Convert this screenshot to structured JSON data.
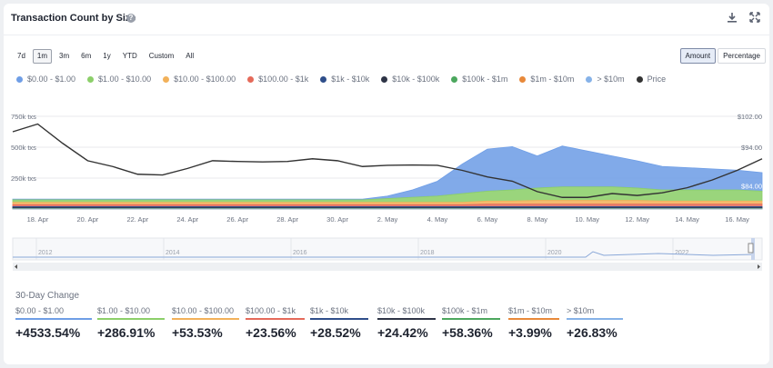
{
  "header": {
    "title": "Transaction Count by Size",
    "help_icon": "?"
  },
  "ranges": [
    {
      "label": "7d",
      "active": false
    },
    {
      "label": "1m",
      "active": true
    },
    {
      "label": "3m",
      "active": false
    },
    {
      "label": "6m",
      "active": false
    },
    {
      "label": "1y",
      "active": false
    },
    {
      "label": "YTD",
      "active": false
    },
    {
      "label": "Custom",
      "active": false
    },
    {
      "label": "All",
      "active": false
    }
  ],
  "modes": [
    {
      "label": "Amount",
      "active": true
    },
    {
      "label": "Percentage",
      "active": false
    }
  ],
  "colors": {
    "s1": "#6f9ee6",
    "s2": "#8ccf6a",
    "s3": "#f2b15a",
    "s4": "#e56a5a",
    "s5": "#2f4e8a",
    "s6": "#2e3446",
    "s7": "#4ca75e",
    "s8": "#e8893a",
    "s9": "#86b2e8",
    "price": "#333333"
  },
  "legend": [
    {
      "label": "$0.00 - $1.00",
      "color": "#6f9ee6"
    },
    {
      "label": "$1.00 - $10.00",
      "color": "#8ccf6a"
    },
    {
      "label": "$10.00 - $100.00",
      "color": "#f2b15a"
    },
    {
      "label": "$100.00 - $1k",
      "color": "#e56a5a"
    },
    {
      "label": "$1k - $10k",
      "color": "#2f4e8a"
    },
    {
      "label": "$10k - $100k",
      "color": "#2e3446"
    },
    {
      "label": "$100k - $1m",
      "color": "#4ca75e"
    },
    {
      "label": "$1m - $10m",
      "color": "#e8893a"
    },
    {
      "label": "> $10m",
      "color": "#86b2e8"
    },
    {
      "label": "Price",
      "color": "#333333"
    }
  ],
  "chart_data": {
    "type": "area",
    "y_left_ticks": [
      "750k txs",
      "500k txs",
      "250k txs"
    ],
    "y_right_ticks": [
      "$102.00",
      "$94.00"
    ],
    "right_value_labels": [
      "$84.00"
    ],
    "ylim_left": [
      0,
      750000
    ],
    "ylim_right": [
      78,
      102
    ],
    "x_ticks": [
      "18. Apr",
      "20. Apr",
      "22. Apr",
      "24. Apr",
      "26. Apr",
      "28. Apr",
      "30. Apr",
      "2. May",
      "4. May",
      "6. May",
      "8. May",
      "10. May",
      "12. May",
      "14. May",
      "16. May"
    ],
    "x": [
      "17. Apr",
      "18. Apr",
      "19. Apr",
      "20. Apr",
      "21. Apr",
      "22. Apr",
      "23. Apr",
      "24. Apr",
      "25. Apr",
      "26. Apr",
      "27. Apr",
      "28. Apr",
      "29. Apr",
      "30. Apr",
      "1. May",
      "2. May",
      "3. May",
      "4. May",
      "5. May",
      "6. May",
      "7. May",
      "8. May",
      "9. May",
      "10. May",
      "11. May",
      "12. May",
      "13. May",
      "14. May",
      "15. May",
      "16. May",
      "17. May"
    ],
    "series": [
      {
        "name": "$0.00 - $1.00",
        "values": [
          5000,
          5000,
          5000,
          5000,
          5000,
          5000,
          5000,
          5000,
          5000,
          5000,
          5000,
          5000,
          5000,
          5000,
          5000,
          20000,
          60000,
          120000,
          240000,
          340000,
          350000,
          260000,
          330000,
          290000,
          250000,
          220000,
          190000,
          180000,
          170000,
          160000,
          150000
        ]
      },
      {
        "name": "$1.00 - $10.00",
        "values": [
          20000,
          20000,
          20000,
          20000,
          20000,
          20000,
          20000,
          20000,
          20000,
          20000,
          20000,
          20000,
          20000,
          20000,
          20000,
          30000,
          40000,
          50000,
          70000,
          80000,
          90000,
          100000,
          110000,
          110000,
          110000,
          100000,
          90000,
          90000,
          90000,
          90000,
          80000
        ]
      },
      {
        "name": "$10.00 - $100.00",
        "values": [
          20000,
          20000,
          20000,
          20000,
          20000,
          20000,
          20000,
          20000,
          20000,
          20000,
          20000,
          20000,
          20000,
          20000,
          20000,
          20000,
          20000,
          20000,
          20000,
          25000,
          25000,
          30000,
          30000,
          30000,
          30000,
          30000,
          25000,
          25000,
          25000,
          25000,
          25000
        ]
      },
      {
        "name": "$100.00 - $1k",
        "values": [
          15000,
          15000,
          15000,
          15000,
          15000,
          15000,
          15000,
          15000,
          15000,
          15000,
          15000,
          15000,
          15000,
          15000,
          15000,
          15000,
          15000,
          15000,
          15000,
          20000,
          20000,
          20000,
          20000,
          20000,
          20000,
          20000,
          20000,
          20000,
          20000,
          20000,
          20000
        ]
      },
      {
        "name": "$1k - $10k",
        "values": [
          10000,
          10000,
          10000,
          10000,
          10000,
          10000,
          10000,
          10000,
          10000,
          10000,
          10000,
          10000,
          10000,
          10000,
          10000,
          10000,
          10000,
          10000,
          10000,
          10000,
          10000,
          10000,
          10000,
          10000,
          10000,
          10000,
          10000,
          10000,
          10000,
          10000,
          10000
        ]
      },
      {
        "name": "$10k - $100k",
        "values": [
          5000,
          5000,
          5000,
          5000,
          5000,
          5000,
          5000,
          5000,
          5000,
          5000,
          5000,
          5000,
          5000,
          5000,
          5000,
          5000,
          5000,
          5000,
          5000,
          5000,
          5000,
          5000,
          5000,
          5000,
          5000,
          5000,
          5000,
          5000,
          5000,
          5000,
          5000
        ]
      },
      {
        "name": "$100k - $1m",
        "values": [
          3000,
          3000,
          3000,
          3000,
          3000,
          3000,
          3000,
          3000,
          3000,
          3000,
          3000,
          3000,
          3000,
          3000,
          3000,
          3000,
          3000,
          3000,
          3000,
          3000,
          3000,
          3000,
          3000,
          3000,
          3000,
          3000,
          3000,
          3000,
          3000,
          3000,
          3000
        ]
      },
      {
        "name": "$1m - $10m",
        "values": [
          1000,
          1000,
          1000,
          1000,
          1000,
          1000,
          1000,
          1000,
          1000,
          1000,
          1000,
          1000,
          1000,
          1000,
          1000,
          1000,
          1000,
          1000,
          1000,
          1000,
          1000,
          1000,
          1000,
          1000,
          1000,
          1000,
          1000,
          1000,
          1000,
          1000,
          1000
        ]
      },
      {
        "name": "> $10m",
        "values": [
          500,
          500,
          500,
          500,
          500,
          500,
          500,
          500,
          500,
          500,
          500,
          500,
          500,
          500,
          500,
          500,
          500,
          500,
          500,
          500,
          500,
          500,
          500,
          500,
          500,
          500,
          500,
          500,
          500,
          500,
          500
        ]
      }
    ],
    "price": {
      "name": "Price",
      "values": [
        98,
        100,
        95,
        90.5,
        89,
        87,
        86.8,
        88.5,
        90.5,
        90.3,
        90.2,
        90.3,
        91,
        90.5,
        89,
        89.3,
        89.4,
        89.3,
        88,
        86.3,
        85.2,
        82.5,
        81,
        81,
        82,
        81.5,
        82.2,
        83.5,
        85.5,
        88,
        91
      ]
    }
  },
  "navigator": {
    "year_labels": [
      "2012",
      "2014",
      "2016",
      "2018",
      "2020",
      "2022"
    ]
  },
  "changes": {
    "title": "30-Day Change",
    "items": [
      {
        "label": "$0.00 - $1.00",
        "value": "+4533.54%",
        "color": "#6f9ee6"
      },
      {
        "label": "$1.00 - $10.00",
        "value": "+286.91%",
        "color": "#8ccf6a"
      },
      {
        "label": "$10.00 - $100.00",
        "value": "+53.53%",
        "color": "#f2b15a"
      },
      {
        "label": "$100.00 - $1k",
        "value": "+23.56%",
        "color": "#e56a5a"
      },
      {
        "label": "$1k - $10k",
        "value": "+28.52%",
        "color": "#2f4e8a"
      },
      {
        "label": "$10k - $100k",
        "value": "+24.42%",
        "color": "#2e3446"
      },
      {
        "label": "$100k - $1m",
        "value": "+58.36%",
        "color": "#4ca75e"
      },
      {
        "label": "$1m - $10m",
        "value": "+3.99%",
        "color": "#e8893a"
      },
      {
        "label": "> $10m",
        "value": "+26.83%",
        "color": "#86b2e8"
      }
    ]
  }
}
